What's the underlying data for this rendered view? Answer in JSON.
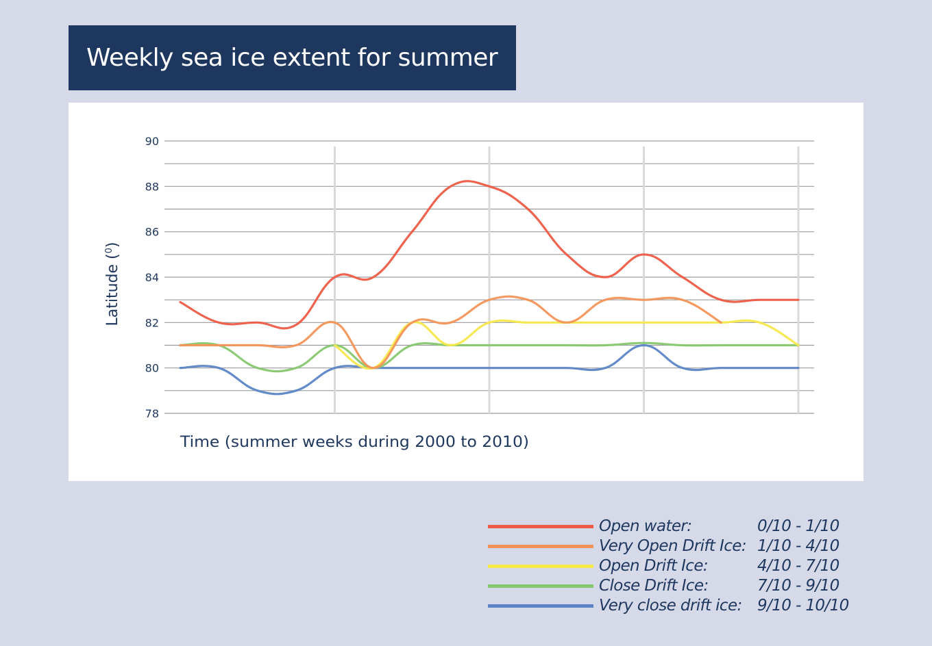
{
  "title": "Weekly sea ice extent for summer",
  "chart_data": {
    "type": "line",
    "title": "Weekly sea ice extent for summer",
    "xlabel": "Time (summer weeks during 2000 to 2010)",
    "ylabel": "Latitude (",
    "ylabel_sup": "0",
    "ylabel_end": ")",
    "ylim": [
      78,
      90
    ],
    "yticks": [
      "90",
      "88",
      "86",
      "84",
      "82",
      "80",
      "78"
    ],
    "x": [
      0,
      1,
      2,
      3,
      4,
      5,
      6,
      7,
      8,
      9,
      10,
      11,
      12,
      13,
      14,
      15,
      16
    ],
    "xlim": [
      0,
      16
    ],
    "vertical_gridlines_at": [
      4,
      8,
      12,
      16
    ],
    "grid": true,
    "legend_position": "bottom-right",
    "series": [
      {
        "name": "Open water:",
        "range": "0/10 - 1/10",
        "color": "#ee5a45",
        "values": [
          82.9,
          82.0,
          82.0,
          81.9,
          84.0,
          84.0,
          86.0,
          88.0,
          88.0,
          87.0,
          85.0,
          84.0,
          85.0,
          84.0,
          83.0,
          83.0,
          83.0
        ]
      },
      {
        "name": "Very Open Drift Ice:",
        "range": "1/10 - 4/10",
        "color": "#f39456",
        "values": [
          81.0,
          81.0,
          81.0,
          81.0,
          82.0,
          80.0,
          82.0,
          82.0,
          83.0,
          83.0,
          82.0,
          83.0,
          83.0,
          83.0,
          82.0,
          null,
          null
        ]
      },
      {
        "name": "Open Drift Ice:",
        "range": "4/10 - 7/10",
        "color": "#f7e84a",
        "values": [
          null,
          null,
          null,
          null,
          81.0,
          80.0,
          82.0,
          81.0,
          82.0,
          82.0,
          82.0,
          82.0,
          82.0,
          82.0,
          82.0,
          82.0,
          81.0
        ]
      },
      {
        "name": "Close Drift Ice:",
        "range": "7/10 - 9/10",
        "color": "#86c76e",
        "values": [
          81.0,
          81.0,
          80.0,
          80.0,
          81.0,
          80.0,
          81.0,
          81.0,
          81.0,
          81.0,
          81.0,
          81.0,
          81.1,
          81.0,
          81.0,
          81.0,
          81.0
        ]
      },
      {
        "name": "Very close drift ice:",
        "range": "9/10 - 10/10",
        "color": "#5b85c6",
        "values": [
          80.0,
          80.0,
          79.0,
          79.0,
          80.0,
          80.0,
          80.0,
          80.0,
          80.0,
          80.0,
          80.0,
          80.0,
          81.0,
          80.0,
          80.0,
          80.0,
          80.0
        ]
      }
    ]
  },
  "colors": {
    "background": "#d6d9e8",
    "title_bg": "#1e375e",
    "text": "#1e375e"
  }
}
